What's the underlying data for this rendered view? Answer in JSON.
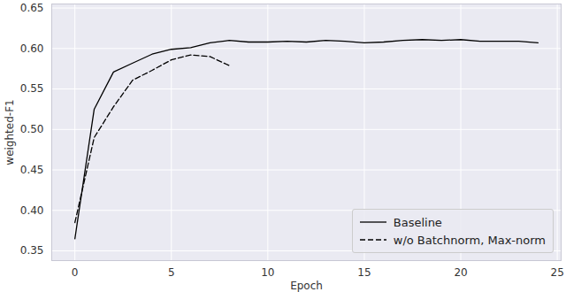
{
  "chart_data": {
    "type": "line",
    "x_label": "Epoch",
    "y_label": "weighted-F1",
    "x": [
      0,
      1,
      2,
      3,
      4,
      5,
      6,
      7,
      8,
      9,
      10,
      11,
      12,
      13,
      14,
      15,
      16,
      17,
      18,
      19,
      20,
      21,
      22,
      23,
      24
    ],
    "series": [
      {
        "name": "Baseline",
        "color": "#000000",
        "line_style": "solid",
        "values": [
          0.365,
          0.525,
          0.571,
          0.582,
          0.593,
          0.599,
          0.601,
          0.607,
          0.61,
          0.608,
          0.608,
          0.609,
          0.608,
          0.61,
          0.609,
          0.607,
          0.608,
          0.61,
          0.611,
          0.61,
          0.611,
          0.609,
          0.609,
          0.609,
          0.607
        ]
      },
      {
        "name": "w/o Batchnorm, Max-norm",
        "color": "#000000",
        "line_style": "dashed",
        "values": [
          0.385,
          0.49,
          0.528,
          0.561,
          0.573,
          0.586,
          0.592,
          0.59,
          0.579,
          null,
          null,
          null,
          null,
          null,
          null,
          null,
          null,
          null,
          null,
          null,
          null,
          null,
          null,
          null,
          null
        ]
      }
    ],
    "xlim": [
      -1.2,
      25.2
    ],
    "xticks": [
      0,
      5,
      10,
      15,
      20,
      25
    ],
    "ylim": [
      0.338,
      0.655
    ],
    "yticks": [
      0.35,
      {
        "value": 0.4,
        "label": "0.40"
      },
      0.45,
      {
        "value": 0.5,
        "label": "0.50"
      },
      0.55,
      {
        "value": 0.6,
        "label": "0.60"
      },
      0.65
    ],
    "grid": true,
    "legend": "lower right"
  }
}
